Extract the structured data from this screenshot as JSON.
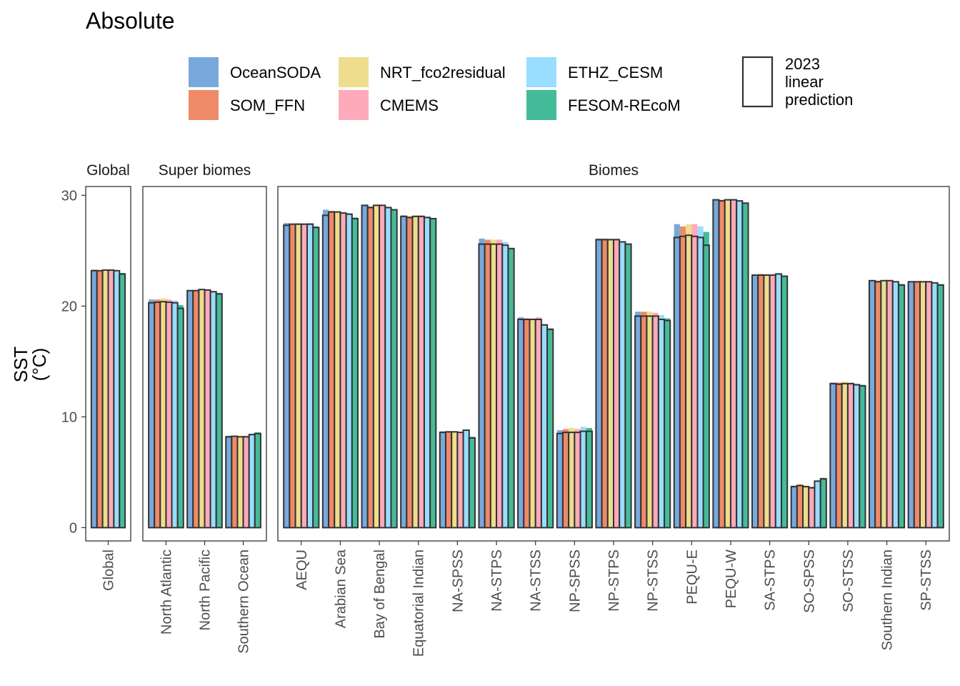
{
  "title": "Absolute",
  "legend": {
    "products": [
      {
        "name": "OceanSODA",
        "color": "#78A9DC"
      },
      {
        "name": "SOM_FFN",
        "color": "#EF8A68"
      },
      {
        "name": "NRT_fco2residual",
        "color": "#EEDD8C"
      },
      {
        "name": "CMEMS",
        "color": "#FFAABB"
      },
      {
        "name": "ETHZ_CESM",
        "color": "#99DDFF"
      },
      {
        "name": "FESOM-REcoM",
        "color": "#44BB99"
      }
    ],
    "prediction_label_lines": [
      "2023",
      "linear",
      "prediction"
    ]
  },
  "chart_data": {
    "type": "bar",
    "title": "Absolute",
    "ylabel_lines": [
      "SST",
      "(°C)"
    ],
    "ylim": [
      -1.2,
      30.8
    ],
    "yticks": [
      0,
      10,
      20,
      30
    ],
    "grid": false,
    "legend_position": "top",
    "series_order": [
      "OceanSODA",
      "SOM_FFN",
      "NRT_fco2residual",
      "CMEMS",
      "ETHZ_CESM",
      "FESOM-REcoM"
    ],
    "panels": [
      {
        "label": "Global",
        "categories": [
          "Global"
        ],
        "observed": [
          [
            23.3,
            23.2,
            23.3,
            23.3,
            23.2,
            23.0
          ]
        ],
        "prediction": [
          [
            23.2,
            23.2,
            23.25,
            23.25,
            23.2,
            22.9
          ]
        ]
      },
      {
        "label": "Super biomes",
        "categories": [
          "North Atlantic",
          "North Pacific",
          "Southern Ocean"
        ],
        "observed": [
          [
            20.6,
            20.6,
            20.7,
            20.6,
            20.5,
            20.1
          ],
          [
            21.4,
            21.4,
            21.5,
            21.5,
            21.3,
            21.2
          ],
          [
            8.3,
            8.3,
            8.3,
            8.3,
            8.5,
            8.6
          ]
        ],
        "prediction": [
          [
            20.3,
            20.35,
            20.4,
            20.35,
            20.3,
            19.8
          ],
          [
            21.4,
            21.4,
            21.5,
            21.45,
            21.3,
            21.1
          ],
          [
            8.2,
            8.25,
            8.2,
            8.2,
            8.4,
            8.5
          ]
        ]
      },
      {
        "label": "Biomes",
        "categories": [
          "AEQU",
          "Arabian Sea",
          "Bay of Bengal",
          "Equatorial Indian",
          "NA-SPSS",
          "NA-STPS",
          "NA-STSS",
          "NP-SPSS",
          "NP-STPS",
          "NP-STSS",
          "PEQU-E",
          "PEQU-W",
          "SA-STPS",
          "SO-SPSS",
          "SO-STSS",
          "Southern Indian",
          "SP-STSS"
        ],
        "observed": [
          [
            27.5,
            27.4,
            27.5,
            27.4,
            27.5,
            27.2
          ],
          [
            28.7,
            28.6,
            28.6,
            28.5,
            28.4,
            28.0
          ],
          [
            29.1,
            29.0,
            29.1,
            29.1,
            28.9,
            28.7
          ],
          [
            28.2,
            28.1,
            28.2,
            28.2,
            28.1,
            27.9
          ],
          [
            8.7,
            8.7,
            8.7,
            8.6,
            8.8,
            8.2
          ],
          [
            26.1,
            26.0,
            26.0,
            26.0,
            25.8,
            25.2
          ],
          [
            19.0,
            18.9,
            18.9,
            19.0,
            18.4,
            18.0
          ],
          [
            8.8,
            8.9,
            9.0,
            8.9,
            9.1,
            9.0
          ],
          [
            26.1,
            26.1,
            26.1,
            26.1,
            25.8,
            25.6
          ],
          [
            19.5,
            19.5,
            19.5,
            19.4,
            19.2,
            18.9
          ],
          [
            27.4,
            27.2,
            27.4,
            27.4,
            27.2,
            26.7
          ],
          [
            29.6,
            29.6,
            29.6,
            29.6,
            29.5,
            29.3
          ],
          [
            22.8,
            22.9,
            22.9,
            22.8,
            23.0,
            22.7
          ],
          [
            3.8,
            3.9,
            3.8,
            3.7,
            4.2,
            4.5
          ],
          [
            13.1,
            13.1,
            13.2,
            13.1,
            13.0,
            12.9
          ],
          [
            22.3,
            22.3,
            22.3,
            22.3,
            22.2,
            22.0
          ],
          [
            22.2,
            22.2,
            22.2,
            22.2,
            22.1,
            22.0
          ]
        ],
        "prediction": [
          [
            27.3,
            27.4,
            27.4,
            27.4,
            27.4,
            27.1
          ],
          [
            28.2,
            28.5,
            28.5,
            28.4,
            28.3,
            27.9
          ],
          [
            29.1,
            28.9,
            29.1,
            29.1,
            28.9,
            28.7
          ],
          [
            28.1,
            28.0,
            28.1,
            28.1,
            28.0,
            27.9
          ],
          [
            8.6,
            8.65,
            8.65,
            8.6,
            8.8,
            8.1
          ],
          [
            25.6,
            25.6,
            25.6,
            25.6,
            25.5,
            25.2
          ],
          [
            18.8,
            18.8,
            18.8,
            18.8,
            18.3,
            17.9
          ],
          [
            8.5,
            8.6,
            8.6,
            8.6,
            8.7,
            8.7
          ],
          [
            26.0,
            26.0,
            26.0,
            26.0,
            25.8,
            25.6
          ],
          [
            19.1,
            19.1,
            19.1,
            19.1,
            18.8,
            18.7
          ],
          [
            26.2,
            26.3,
            26.4,
            26.3,
            26.2,
            25.5
          ],
          [
            29.6,
            29.5,
            29.6,
            29.6,
            29.5,
            29.3
          ],
          [
            22.8,
            22.8,
            22.8,
            22.8,
            22.9,
            22.7
          ],
          [
            3.7,
            3.8,
            3.7,
            3.6,
            4.2,
            4.4
          ],
          [
            13.0,
            12.95,
            13.0,
            13.0,
            12.9,
            12.8
          ],
          [
            22.3,
            22.2,
            22.3,
            22.3,
            22.2,
            21.9
          ],
          [
            22.2,
            22.2,
            22.2,
            22.2,
            22.1,
            21.9
          ]
        ]
      }
    ]
  }
}
